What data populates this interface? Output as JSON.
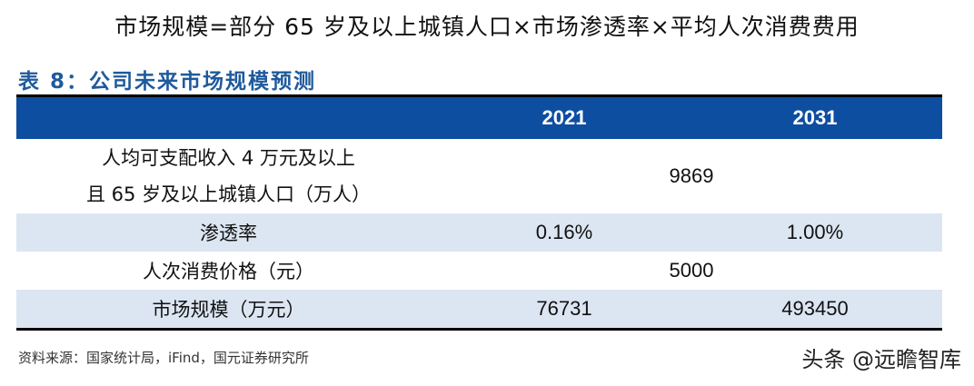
{
  "formula": "市场规模=部分 65 岁及以上城镇人口×市场渗透率×平均人次消费费用",
  "caption": "表 8：公司未来市场规模预测",
  "table": {
    "headers": [
      "",
      "2021",
      "2031"
    ],
    "rows": [
      {
        "label_line1": "人均可支配收入 4 万元及以上",
        "label_line2": "且 65 岁及以上城镇人口（万人）",
        "merged": "9869"
      },
      {
        "label": "渗透率",
        "v2021": "0.16%",
        "v2031": "1.00%"
      },
      {
        "label": "人次消费价格（元）",
        "merged": "5000"
      },
      {
        "label": "市场规模（万元）",
        "v2021": "76731",
        "v2031": "493450"
      }
    ]
  },
  "source": "资料来源：国家统计局，iFind，国元证券研究所",
  "watermark": "头条 @远瞻智库"
}
